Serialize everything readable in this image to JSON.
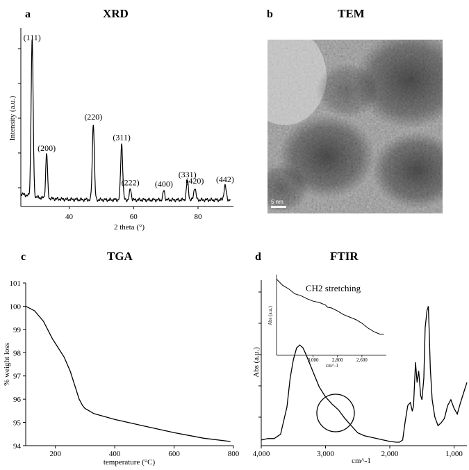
{
  "panels": {
    "a": {
      "letter": "a",
      "title": "XRD"
    },
    "b": {
      "letter": "b",
      "title": "TEM",
      "scale_bar": "5 nm"
    },
    "c": {
      "letter": "c",
      "title": "TGA"
    },
    "d": {
      "letter": "d",
      "title": "FTIR"
    }
  },
  "chart_data": [
    {
      "id": "xrd",
      "type": "line",
      "xlabel": "2 theta (°)",
      "ylabel": "Intensity (a.u.)",
      "xlim": [
        25,
        91
      ],
      "xticks": [
        40,
        60,
        80
      ],
      "ylim": [
        0,
        100
      ],
      "baseline": 2,
      "peaks": [
        {
          "label": "(111)",
          "x": 28.5,
          "y": 100,
          "w": 0.45
        },
        {
          "label": "(200)",
          "x": 33.0,
          "y": 29,
          "w": 0.4
        },
        {
          "label": "(220)",
          "x": 47.5,
          "y": 49,
          "w": 0.45
        },
        {
          "label": "(311)",
          "x": 56.3,
          "y": 36,
          "w": 0.45
        },
        {
          "label": "(222)",
          "x": 59.0,
          "y": 7,
          "w": 0.4
        },
        {
          "label": "(400)",
          "x": 69.4,
          "y": 6,
          "w": 0.4
        },
        {
          "label": "(331)",
          "x": 76.7,
          "y": 12,
          "w": 0.45
        },
        {
          "label": "(420)",
          "x": 79.0,
          "y": 8,
          "w": 0.45
        },
        {
          "label": "(442)",
          "x": 88.4,
          "y": 9,
          "w": 0.5
        }
      ]
    },
    {
      "id": "tga",
      "type": "line",
      "xlabel": "temperature (°C)",
      "ylabel": "% weight loss",
      "xlim": [
        100,
        800
      ],
      "ylim": [
        94,
        101
      ],
      "xticks": [
        200,
        400,
        600,
        800
      ],
      "yticks": [
        94,
        95,
        96,
        97,
        98,
        99,
        100,
        101
      ],
      "x": [
        100,
        130,
        160,
        190,
        210,
        230,
        250,
        265,
        280,
        292,
        300,
        330,
        400,
        500,
        600,
        700,
        790
      ],
      "y": [
        100.0,
        99.8,
        99.35,
        98.6,
        98.2,
        97.8,
        97.2,
        96.6,
        96.0,
        95.72,
        95.6,
        95.38,
        95.13,
        94.84,
        94.56,
        94.32,
        94.18
      ]
    },
    {
      "id": "ftir",
      "type": "line",
      "xlabel": "cm^-1",
      "ylabel": "Abs (a.u.)",
      "xlim": [
        4000,
        800
      ],
      "xdirection": "reversed",
      "xticks": [
        4000,
        3000,
        2000,
        1000
      ],
      "xticklabels": [
        "4,000",
        "3,000",
        "2,000",
        "1,000"
      ],
      "ylim": [
        0,
        100
      ],
      "x": [
        4000,
        3900,
        3800,
        3700,
        3600,
        3550,
        3500,
        3450,
        3400,
        3350,
        3300,
        3200,
        3100,
        3000,
        2900,
        2800,
        2700,
        2600,
        2500,
        2400,
        2300,
        2200,
        2100,
        2000,
        1900,
        1850,
        1800,
        1760,
        1720,
        1680,
        1650,
        1630,
        1600,
        1575,
        1550,
        1520,
        1500,
        1470,
        1450,
        1420,
        1400,
        1385,
        1370,
        1340,
        1300,
        1250,
        1200,
        1150,
        1100,
        1050,
        1000,
        950,
        900,
        850,
        800
      ],
      "y": [
        2,
        3,
        3,
        6,
        25,
        45,
        58,
        66,
        68,
        66,
        61,
        50,
        39,
        32,
        27,
        23,
        17,
        12,
        7,
        5,
        4,
        3,
        2,
        1,
        0.5,
        0.5,
        2,
        15,
        26,
        28,
        22,
        26,
        56,
        42,
        50,
        33,
        30,
        45,
        80,
        92,
        95,
        75,
        52,
        30,
        18,
        12,
        14,
        17,
        26,
        30,
        24,
        20,
        28,
        35,
        42
      ]
    },
    {
      "id": "ftir-inset",
      "type": "line",
      "title": "CH2  stretching",
      "xlabel": "cm^-1",
      "ylabel": "Abs (a.u.)",
      "xlim": [
        3300,
        2400
      ],
      "xdirection": "reversed",
      "xticks": [
        3000,
        2800,
        2600
      ],
      "xticklabels": [
        "3,000",
        "2,800",
        "2,600"
      ],
      "ylim": [
        0,
        100
      ],
      "x": [
        3300,
        3250,
        3200,
        3150,
        3100,
        3050,
        3000,
        2950,
        2900,
        2880,
        2850,
        2800,
        2750,
        2700,
        2650,
        2600,
        2550,
        2500,
        2450,
        2420
      ],
      "y": [
        96,
        86,
        80,
        72,
        69,
        64,
        60,
        58,
        54,
        50,
        49,
        44,
        38,
        34,
        30,
        24,
        16,
        10,
        6,
        6
      ]
    }
  ]
}
